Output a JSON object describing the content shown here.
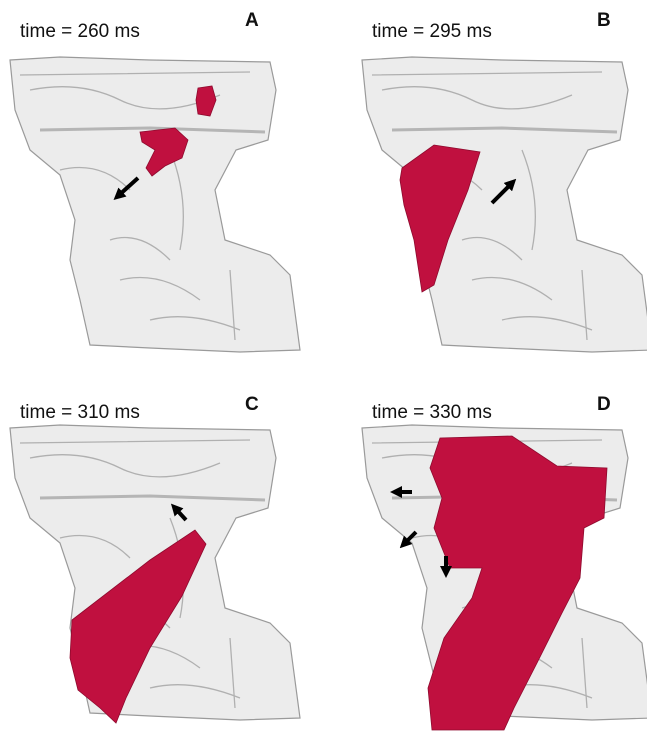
{
  "panels": [
    {
      "time": "time = 260 ms",
      "label": "A"
    },
    {
      "time": "time = 295 ms",
      "label": "B"
    },
    {
      "time": "time = 310 ms",
      "label": "C"
    },
    {
      "time": "time = 330 ms",
      "label": "D"
    }
  ]
}
